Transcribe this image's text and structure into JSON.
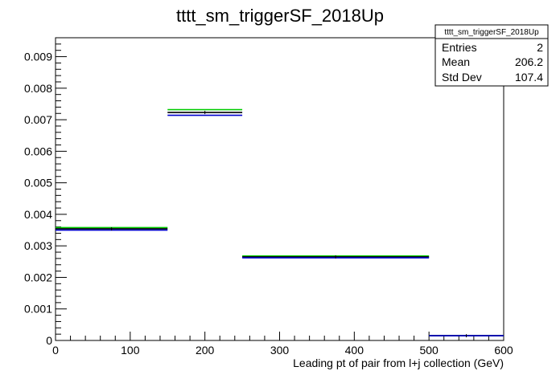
{
  "chart_data": {
    "type": "histogram",
    "title": "tttt_sm_triggerSF_2018Up",
    "xlabel": "Leading pt of pair from l+j collection (GeV)",
    "ylabel": "",
    "xlim": [
      0,
      600
    ],
    "ylim": [
      0,
      0.0096
    ],
    "xticks": [
      0,
      100,
      200,
      300,
      400,
      500,
      600
    ],
    "xtick_labels": [
      "0",
      "100",
      "200",
      "300",
      "400",
      "500",
      "600"
    ],
    "yticks": [
      0,
      0.001,
      0.002,
      0.003,
      0.004,
      0.005,
      0.006,
      0.007,
      0.008,
      0.009
    ],
    "ytick_labels": [
      "0",
      "0.001",
      "0.002",
      "0.003",
      "0.004",
      "0.005",
      "0.006",
      "0.007",
      "0.008",
      "0.009"
    ],
    "grid": false,
    "bin_edges": [
      0,
      150,
      250,
      500,
      600
    ],
    "series": [
      {
        "color": "#00cc00",
        "values": [
          0.00358,
          0.00732,
          0.00268,
          0.00015
        ]
      },
      {
        "color": "#000000",
        "values": [
          0.00354,
          0.00723,
          0.00265,
          0.00015
        ]
      },
      {
        "color": "#0000cc",
        "values": [
          0.0035,
          0.00714,
          0.00262,
          0.00015
        ]
      }
    ],
    "stats_box": {
      "title": "tttt_sm_triggerSF_2018Up",
      "position": "top-right",
      "rows": [
        {
          "label": "Entries",
          "value": "2"
        },
        {
          "label": "Mean",
          "value": "206.2"
        },
        {
          "label": "Std Dev",
          "value": "107.4"
        }
      ]
    }
  }
}
